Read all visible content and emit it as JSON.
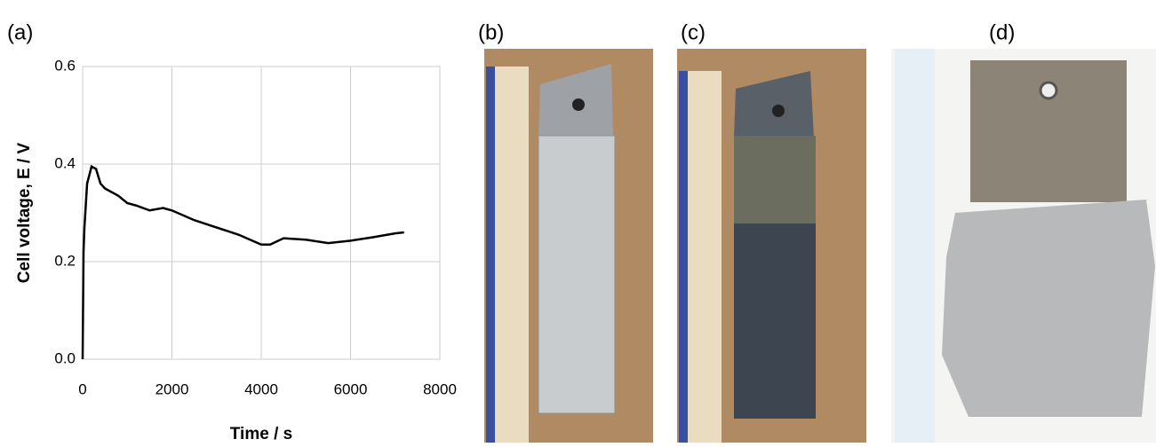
{
  "panels": [
    "(a)",
    "(b)",
    "(c)",
    "(d)"
  ],
  "chart_data": {
    "type": "line",
    "xlabel": "Time / s",
    "ylabel": "Cell voltage, E / V",
    "x": [
      0,
      20,
      40,
      60,
      100,
      200,
      300,
      400,
      500,
      600,
      800,
      1000,
      1200,
      1500,
      1800,
      2000,
      2500,
      3000,
      3500,
      4000,
      4200,
      4500,
      5000,
      5500,
      6000,
      6500,
      7000,
      7200
    ],
    "values": [
      0.0,
      0.22,
      0.27,
      0.3,
      0.36,
      0.395,
      0.39,
      0.36,
      0.35,
      0.345,
      0.335,
      0.32,
      0.315,
      0.305,
      0.31,
      0.305,
      0.285,
      0.27,
      0.255,
      0.235,
      0.235,
      0.248,
      0.245,
      0.238,
      0.243,
      0.25,
      0.258,
      0.26
    ],
    "color": "#000000",
    "xlim": [
      0,
      8000
    ],
    "xticks": [
      0,
      2000,
      4000,
      6000,
      8000
    ],
    "ylim": [
      0,
      0.6
    ],
    "yticks": [
      {
        "value": 0,
        "label": "0.0"
      },
      0.2,
      0.4,
      0.6
    ],
    "grid": true
  }
}
